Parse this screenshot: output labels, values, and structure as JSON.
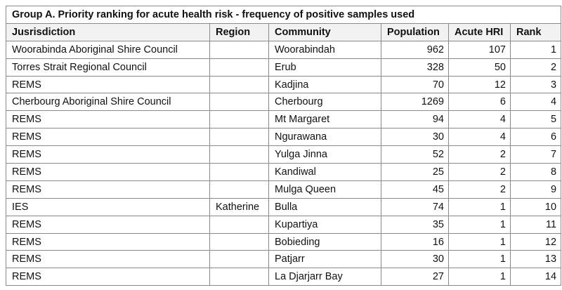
{
  "title": "Group A. Priority ranking for acute health risk - frequency of positive samples used",
  "columns": [
    "Jusrisdiction",
    "Region",
    "Community",
    "Population",
    "Acute HRI",
    "Rank"
  ],
  "rows": [
    {
      "jurisdiction": "Woorabinda Aboriginal Shire Council",
      "region": "",
      "community": "Woorabindah",
      "population": "962",
      "acute_hri": "107",
      "rank": "1"
    },
    {
      "jurisdiction": "Torres Strait Regional Council",
      "region": "",
      "community": "Erub",
      "population": "328",
      "acute_hri": "50",
      "rank": "2"
    },
    {
      "jurisdiction": "REMS",
      "region": "",
      "community": "Kadjina",
      "population": "70",
      "acute_hri": "12",
      "rank": "3"
    },
    {
      "jurisdiction": "Cherbourg Aboriginal Shire Council",
      "region": "",
      "community": "Cherbourg",
      "population": "1269",
      "acute_hri": "6",
      "rank": "4"
    },
    {
      "jurisdiction": "REMS",
      "region": "",
      "community": "Mt Margaret",
      "population": "94",
      "acute_hri": "4",
      "rank": "5"
    },
    {
      "jurisdiction": "REMS",
      "region": "",
      "community": "Ngurawana",
      "population": "30",
      "acute_hri": "4",
      "rank": "6"
    },
    {
      "jurisdiction": "REMS",
      "region": "",
      "community": "Yulga Jinna",
      "population": "52",
      "acute_hri": "2",
      "rank": "7"
    },
    {
      "jurisdiction": "REMS",
      "region": "",
      "community": "Kandiwal",
      "population": "25",
      "acute_hri": "2",
      "rank": "8"
    },
    {
      "jurisdiction": "REMS",
      "region": "",
      "community": "Mulga Queen",
      "population": "45",
      "acute_hri": "2",
      "rank": "9"
    },
    {
      "jurisdiction": "IES",
      "region": "Katherine",
      "community": "Bulla",
      "population": "74",
      "acute_hri": "1",
      "rank": "10"
    },
    {
      "jurisdiction": "REMS",
      "region": "",
      "community": "Kupartiya",
      "population": "35",
      "acute_hri": "1",
      "rank": "11"
    },
    {
      "jurisdiction": "REMS",
      "region": "",
      "community": "Bobieding",
      "population": "16",
      "acute_hri": "1",
      "rank": "12"
    },
    {
      "jurisdiction": "REMS",
      "region": "",
      "community": "Patjarr",
      "population": "30",
      "acute_hri": "1",
      "rank": "13"
    },
    {
      "jurisdiction": "REMS",
      "region": "",
      "community": "La Djarjarr Bay",
      "population": "27",
      "acute_hri": "1",
      "rank": "14"
    }
  ]
}
